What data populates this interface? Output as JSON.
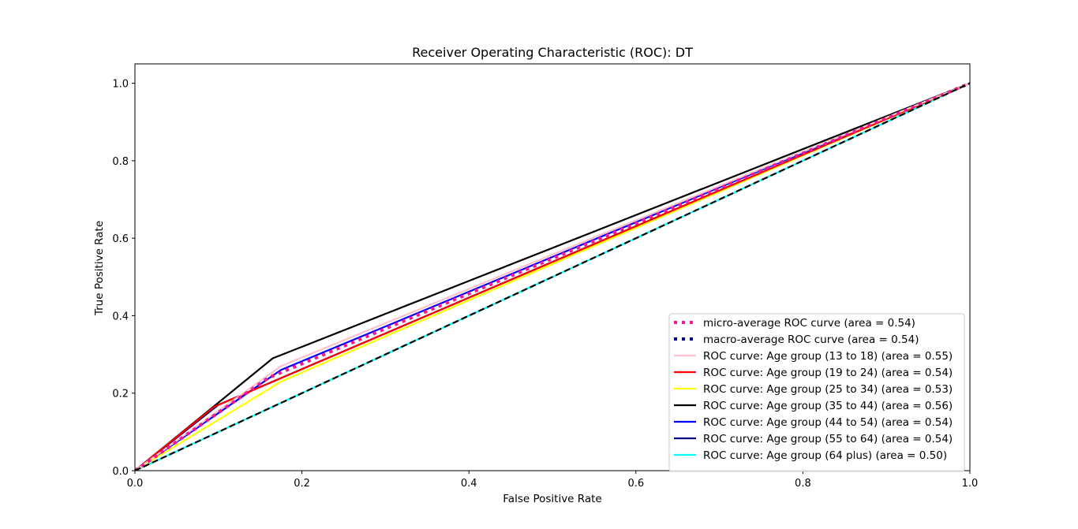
{
  "chart_data": {
    "type": "line",
    "title": "Receiver Operating Characteristic (ROC): DT",
    "xlabel": "False Positive Rate",
    "ylabel": "True Positive Rate",
    "xlim": [
      0.0,
      1.0
    ],
    "ylim": [
      0.0,
      1.05
    ],
    "xticks": [
      "0.0",
      "0.2",
      "0.4",
      "0.6",
      "0.8",
      "1.0"
    ],
    "yticks": [
      "0.0",
      "0.2",
      "0.4",
      "0.6",
      "0.8",
      "1.0"
    ],
    "grid": false,
    "legend_position": "lower-right",
    "series": [
      {
        "name": "micro-average ROC curve (area = 0.54)",
        "color": "#ff1493",
        "style": "dotted",
        "x": [
          0.0,
          0.16,
          1.0
        ],
        "y": [
          0.0,
          0.24,
          1.0
        ]
      },
      {
        "name": "macro-average ROC curve (area = 0.54)",
        "color": "#000080",
        "style": "dotted",
        "x": [
          0.0,
          0.16,
          1.0
        ],
        "y": [
          0.0,
          0.24,
          1.0
        ]
      },
      {
        "name": "ROC curve: Age group (13 to 18) (area = 0.55)",
        "color": "#ffc0cb",
        "style": "solid",
        "x": [
          0.0,
          0.175,
          1.0
        ],
        "y": [
          0.0,
          0.27,
          1.0
        ]
      },
      {
        "name": "ROC curve: Age group (19 to 24) (area = 0.54)",
        "color": "#ff0000",
        "style": "solid",
        "x": [
          0.0,
          0.095,
          1.0
        ],
        "y": [
          0.0,
          0.165,
          1.0
        ]
      },
      {
        "name": "ROC curve: Age group (25 to 34) (area = 0.53)",
        "color": "#ffff00",
        "style": "solid",
        "x": [
          0.0,
          0.175,
          1.0
        ],
        "y": [
          0.0,
          0.23,
          1.0
        ]
      },
      {
        "name": "ROC curve: Age group (35 to 44) (area = 0.56)",
        "color": "#000000",
        "style": "solid",
        "x": [
          0.0,
          0.165,
          1.0
        ],
        "y": [
          0.0,
          0.29,
          1.0
        ]
      },
      {
        "name": "ROC curve: Age group (44 to 54) (area = 0.54)",
        "color": "#0000ff",
        "style": "solid",
        "x": [
          0.0,
          0.175,
          1.0
        ],
        "y": [
          0.0,
          0.26,
          1.0
        ]
      },
      {
        "name": "ROC curve: Age group (55 to 64) (area = 0.54)",
        "color": "#000080",
        "style": "solid",
        "x": [
          0.0,
          0.1,
          1.0
        ],
        "y": [
          0.0,
          0.17,
          1.0
        ]
      },
      {
        "name": "ROC curve: Age group (64 plus) (area = 0.50)",
        "color": "#00ffff",
        "style": "solid",
        "x": [
          0.0,
          1.0
        ],
        "y": [
          0.0,
          1.0
        ]
      }
    ],
    "reference_line": {
      "color": "#000000",
      "style": "dashed",
      "x": [
        0.0,
        1.0
      ],
      "y": [
        0.0,
        1.0
      ]
    }
  }
}
